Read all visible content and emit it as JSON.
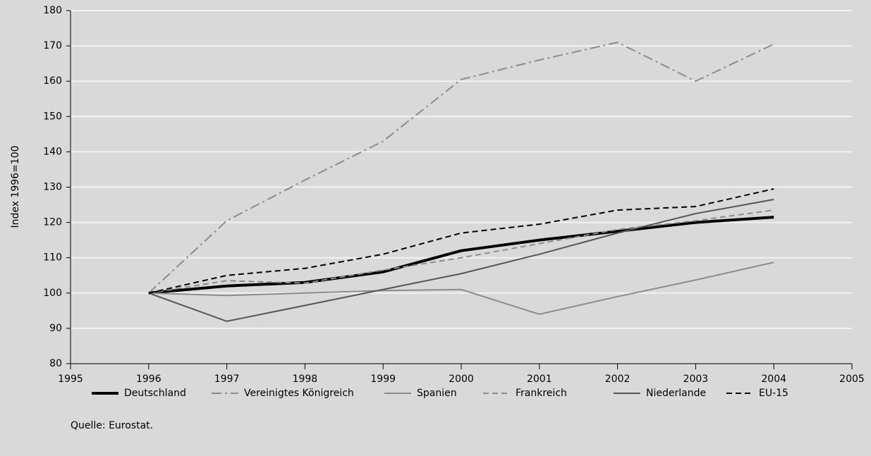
{
  "chart_data": {
    "type": "line",
    "y_label": "Index 1996=100",
    "source": "Quelle: Eurostat.",
    "x": [
      1996,
      1997,
      1998,
      1999,
      2000,
      2001,
      2002,
      2003,
      2004
    ],
    "xlim": [
      1995,
      2005
    ],
    "xticks": [
      1995,
      1996,
      1997,
      1998,
      1999,
      2000,
      2001,
      2002,
      2003,
      2004,
      2005
    ],
    "ylim": [
      80,
      180
    ],
    "yticks": [
      80,
      90,
      100,
      110,
      120,
      130,
      140,
      150,
      160,
      170,
      180
    ],
    "grid": true,
    "legend": "bottom",
    "series": [
      {
        "name": "Deutschland",
        "color": "#000000",
        "dash": "solid",
        "width": 4,
        "values": [
          100,
          102,
          103,
          106,
          112,
          115,
          117.5,
          120,
          121.5
        ]
      },
      {
        "name": "Vereinigtes Königreich",
        "color": "#8c8c8c",
        "dash": "dashdot",
        "width": 2,
        "values": [
          100,
          120.5,
          132,
          143,
          160.5,
          166,
          171,
          160,
          170.5
        ]
      },
      {
        "name": "Spanien",
        "color": "#8c8c8c",
        "dash": "solid",
        "width": 2,
        "values": [
          100,
          99.3,
          100,
          100.7,
          101,
          94,
          99,
          103.7,
          108.7
        ]
      },
      {
        "name": "Frankreich",
        "color": "#8c8c8c",
        "dash": "dashed",
        "width": 2,
        "values": [
          100,
          103.5,
          102.8,
          106.5,
          110,
          114,
          118,
          120.5,
          123.5
        ]
      },
      {
        "name": "Niederlande",
        "color": "#555555",
        "dash": "solid",
        "width": 2,
        "values": [
          100,
          92,
          96.5,
          101,
          105.5,
          111,
          117,
          122.5,
          126.5
        ]
      },
      {
        "name": "EU-15",
        "color": "#000000",
        "dash": "dashed",
        "width": 2,
        "values": [
          100,
          105,
          107,
          111,
          117,
          119.5,
          123.5,
          124.5,
          129.5
        ]
      }
    ]
  }
}
